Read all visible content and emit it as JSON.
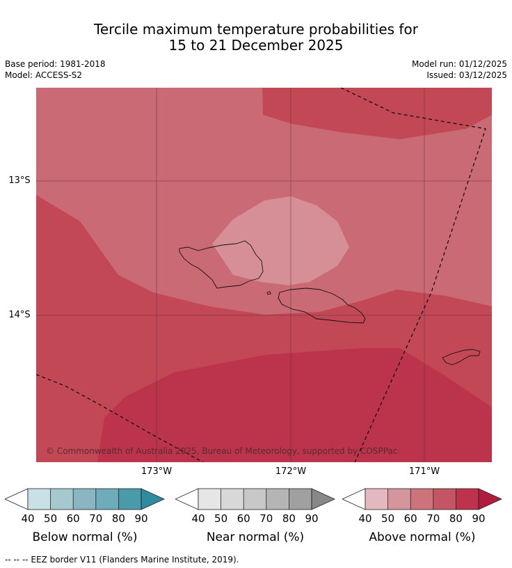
{
  "title_line1": "Tercile maximum temperature probabilities for",
  "title_line2": "15 to 21 December 2025",
  "base_period": "Base period: 1981-2018",
  "model": "Model: ACCESS-S2",
  "model_run": "Model run: 01/12/2025",
  "issued": "Issued: 03/12/2025",
  "lon_labels": [
    "173°W",
    "172°W",
    "171°W"
  ],
  "lat_labels": [
    "13°S",
    "14°S"
  ],
  "copyright": "© Commonwealth of Australia 2025, Bureau of Meteorology, supported by COSPPac",
  "colorbars": [
    {
      "label": "Below normal (%)",
      "ticks": [
        "40",
        "50",
        "60",
        "70",
        "80",
        "90"
      ],
      "colors": [
        "#ffffff",
        "#c8e0e6",
        "#a6c8cf",
        "#89b6c2",
        "#6eacba",
        "#4a9aaa",
        "#2f8ba0"
      ]
    },
    {
      "label": "Near normal (%)",
      "ticks": [
        "40",
        "50",
        "60",
        "70",
        "80",
        "90"
      ],
      "colors": [
        "#ffffff",
        "#e6e6e6",
        "#d8d8d8",
        "#c8c8c8",
        "#b5b5b5",
        "#a0a0a0",
        "#888888"
      ]
    },
    {
      "label": "Above normal (%)",
      "ticks": [
        "40",
        "50",
        "60",
        "70",
        "80",
        "90"
      ],
      "colors": [
        "#ffffff",
        "#e3b9bf",
        "#d5959c",
        "#cd737a",
        "#c45563",
        "#bd334d",
        "#b01d3c"
      ]
    }
  ],
  "footnote": "--  --  -- EEZ border V11 (Flanders Marine Institute, 2019).",
  "map_colors": {
    "level_50_60": "#d68f96",
    "level_60_70": "#c96a74",
    "level_70_80": "#c24855",
    "level_80_90": "#bb344c"
  }
}
